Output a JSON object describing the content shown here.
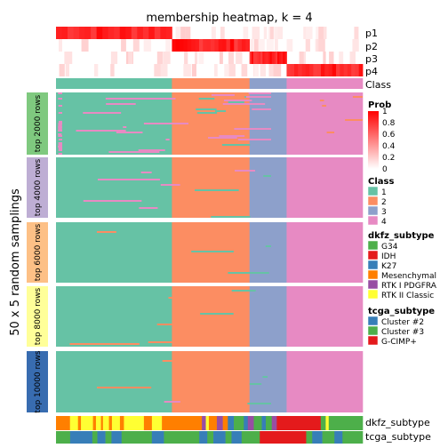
{
  "chart_data": {
    "type": "heatmap",
    "title": "membership heatmap, k = 4",
    "ylabel": "50 x 5 random samplings",
    "groups": [
      {
        "label": "1",
        "color": "#66C2A5",
        "fraction": 0.378
      },
      {
        "label": "2",
        "color": "#FC8D62",
        "fraction": 0.253
      },
      {
        "label": "3",
        "color": "#8DA0CB",
        "fraction": 0.121
      },
      {
        "label": "4",
        "color": "#E78AC3",
        "fraction": 0.248
      }
    ],
    "probability_rows": [
      "p1",
      "p2",
      "p3",
      "p4"
    ],
    "class_row_label": "Class",
    "row_blocks": [
      {
        "label": "top 2000 rows",
        "color": "#7FC97F"
      },
      {
        "label": "top 4000 rows",
        "color": "#BEAED4"
      },
      {
        "label": "top 6000 rows",
        "color": "#FDC086"
      },
      {
        "label": "top 8000 rows",
        "color": "#FFFF99"
      },
      {
        "label": "top 10000 rows",
        "color": "#386CB0"
      }
    ],
    "prob_legend": {
      "title": "Prob",
      "ticks": [
        "1",
        "0.8",
        "0.6",
        "0.4",
        "0.2",
        "0"
      ],
      "color_low": "#FFFFFF",
      "color_high": "#FF0000"
    },
    "class_legend": {
      "title": "Class",
      "items": [
        {
          "label": "1",
          "color": "#66C2A5"
        },
        {
          "label": "2",
          "color": "#FC8D62"
        },
        {
          "label": "3",
          "color": "#8DA0CB"
        },
        {
          "label": "4",
          "color": "#E78AC3"
        }
      ]
    },
    "dkfz_legend": {
      "title": "dkfz_subtype",
      "items": [
        {
          "label": "G34",
          "color": "#4DAF4A"
        },
        {
          "label": "IDH",
          "color": "#E41A1C"
        },
        {
          "label": "K27",
          "color": "#377EB8"
        },
        {
          "label": "Mesenchymal",
          "color": "#FF7F00"
        },
        {
          "label": "RTK I PDGFRA",
          "color": "#984EA3"
        },
        {
          "label": "RTK II Classic",
          "color": "#FFFF33"
        }
      ]
    },
    "tcga_legend": {
      "title": "tcga_subtype",
      "items": [
        {
          "label": "Cluster #2",
          "color": "#377EB8"
        },
        {
          "label": "Cluster #3",
          "color": "#4DAF4A"
        },
        {
          "label": "G-CIMP+",
          "color": "#E41A1C"
        }
      ]
    },
    "bottom_tracks": [
      "dkfz_subtype",
      "tcga_subtype"
    ]
  }
}
